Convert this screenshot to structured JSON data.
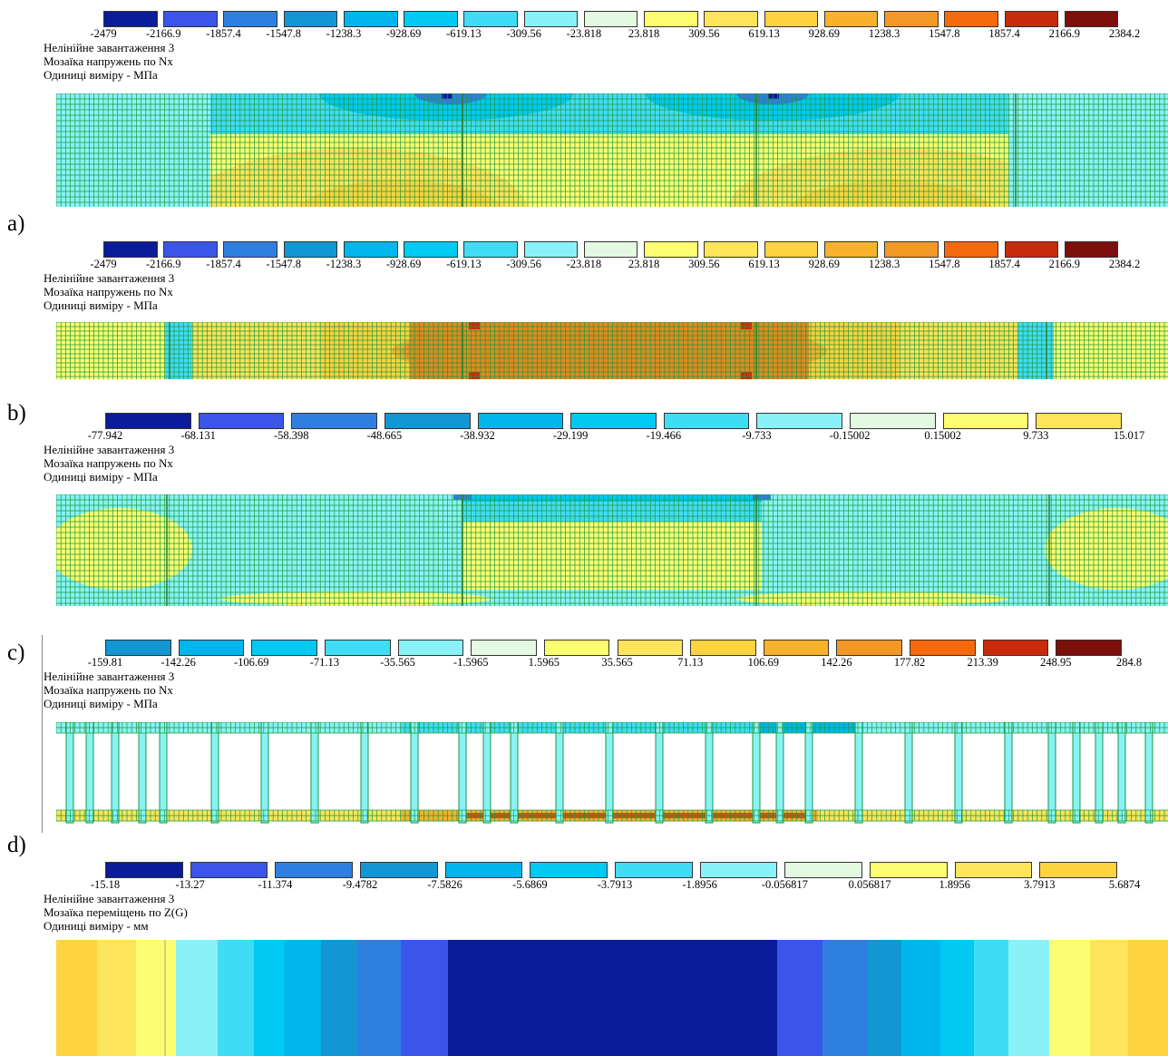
{
  "labels": {
    "a": "a)",
    "b": "b)",
    "c": "c)",
    "d": "d)"
  },
  "panels": [
    {
      "id": "p1",
      "title": [
        "Нелінійне завантаження 3",
        "Мозаїка напружень по Nx",
        "Одиниці виміру - МПа"
      ],
      "legend_colors": [
        "#0a1c99",
        "#3a55e8",
        "#2f7fe0",
        "#1296d4",
        "#00b6ec",
        "#00c9f4",
        "#40dcf6",
        "#88f2f6",
        "#e3f9e1",
        "#fdfd72",
        "#fde45a",
        "#fdd340",
        "#f7b12c",
        "#f39726",
        "#f56a0d",
        "#c72b0b",
        "#7c0f0c"
      ],
      "ticks": [
        "-2479",
        "-2166.9",
        "-1857.4",
        "-1547.8",
        "-1238.3",
        "-928.69",
        "-619.13",
        "-309.56",
        "-23.818",
        "23.818",
        "309.56",
        "619.13",
        "928.69",
        "1238.3",
        "1547.8",
        "1857.4",
        "2166.9",
        "2384.2"
      ]
    },
    {
      "id": "p2",
      "title": [
        "Нелінійне завантаження 3",
        "Мозаїка напружень по Nx",
        "Одиниці виміру - МПа"
      ],
      "legend_colors": [
        "#0a1c99",
        "#3a55e8",
        "#2f7fe0",
        "#1296d4",
        "#00b6ec",
        "#00c9f4",
        "#40dcf6",
        "#88f2f6",
        "#e3f9e1",
        "#fdfd72",
        "#fde45a",
        "#fdd340",
        "#f7b12c",
        "#f39726",
        "#f56a0d",
        "#c72b0b",
        "#7c0f0c"
      ],
      "ticks": [
        "-2479",
        "-2166.9",
        "-1857.4",
        "-1547.8",
        "-1238.3",
        "-928.69",
        "-619.13",
        "-309.56",
        "-23.818",
        "23.818",
        "309.56",
        "619.13",
        "928.69",
        "1238.3",
        "1547.8",
        "1857.4",
        "2166.9",
        "2384.2"
      ]
    },
    {
      "id": "p3",
      "title": [
        "Нелінійне завантаження 3",
        "Мозаїка напружень по Nx",
        "Одиниці виміру - МПа"
      ],
      "legend_colors": [
        "#0a1c99",
        "#3a55e8",
        "#2f7fe0",
        "#1296d4",
        "#00b6ec",
        "#00c9f4",
        "#40dcf6",
        "#88f2f6",
        "#e3f9e1",
        "#fdfd72",
        "#fde45a"
      ],
      "ticks": [
        "-77.942",
        "-68.131",
        "-58.398",
        "-48.665",
        "-38.932",
        "-29.199",
        "-19.466",
        "-9.733",
        "-0.15002",
        "0.15002",
        "9.733",
        "15.017"
      ]
    },
    {
      "id": "p4",
      "title": [
        "Нелінійне завантаження 3",
        "Мозаїка напружень по Nx",
        "Одиниці виміру - МПа"
      ],
      "legend_colors": [
        "#1296d4",
        "#00b6ec",
        "#00c9f4",
        "#40dcf6",
        "#88f2f6",
        "#e3f9e1",
        "#fdfd72",
        "#fde45a",
        "#fdd340",
        "#f7b12c",
        "#f39726",
        "#f56a0d",
        "#c72b0b",
        "#7c0f0c"
      ],
      "ticks": [
        "-159.81",
        "-142.26",
        "-106.69",
        "-71.13",
        "-35.565",
        "-1.5965",
        "1.5965",
        "35.565",
        "71.13",
        "106.69",
        "142.26",
        "177.82",
        "213.39",
        "248.95",
        "284.8"
      ]
    },
    {
      "id": "p5",
      "title": [
        "Нелінійне завантаження 3",
        "Мозаїка переміщень по Z(G)",
        "Одиниці виміру - мм"
      ],
      "legend_colors": [
        "#0a1c99",
        "#3a55e8",
        "#2f7fe0",
        "#1296d4",
        "#00b6ec",
        "#00c9f4",
        "#40dcf6",
        "#88f2f6",
        "#e3f9e1",
        "#fdfd72",
        "#fde45a",
        "#fdd340"
      ],
      "ticks": [
        "-15.18",
        "-13.27",
        "-11.374",
        "-9.4782",
        "-7.5826",
        "-5.6869",
        "-3.7913",
        "-1.8956",
        "-0.056817",
        "0.056817",
        "1.8956",
        "3.7913",
        "5.6874"
      ]
    }
  ]
}
